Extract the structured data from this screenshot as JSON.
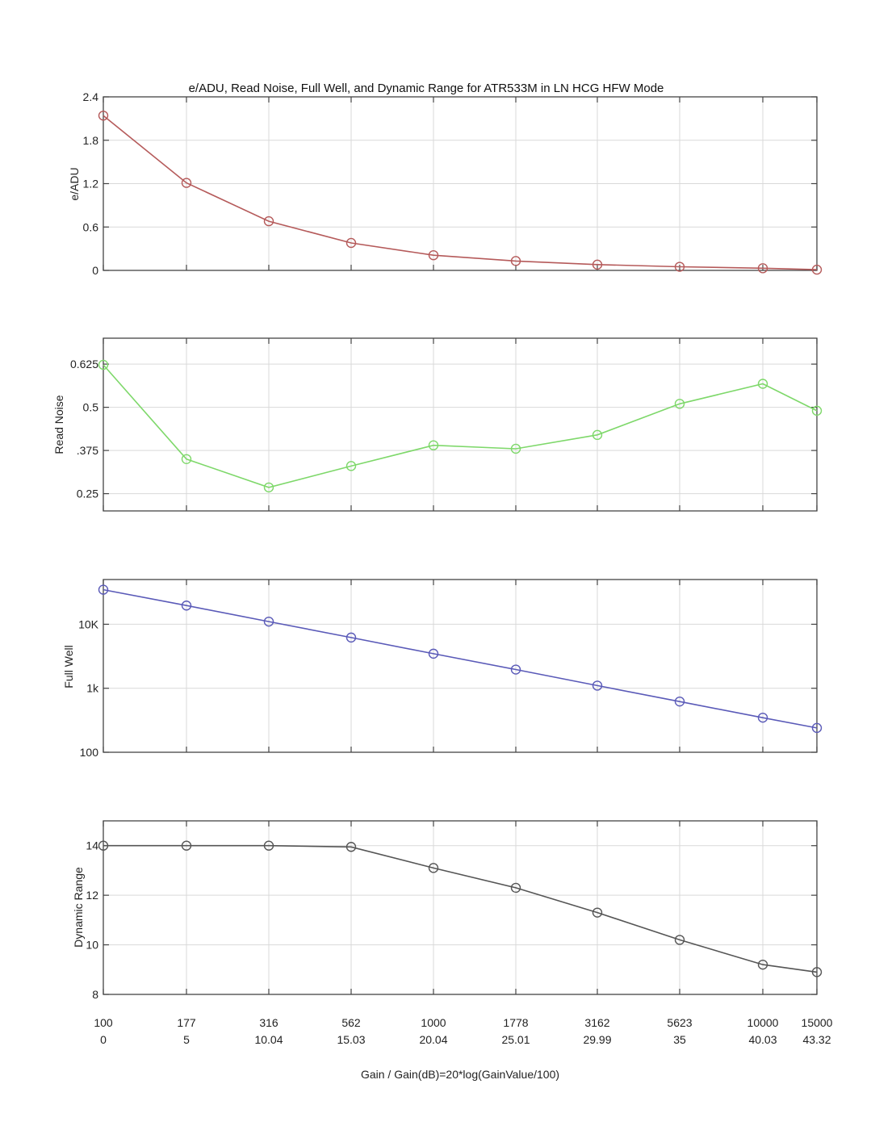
{
  "figure": {
    "title": "e/ADU, Read Noise, Full Well, and Dynamic Range for ATR533M in LN HCG HFW Mode",
    "xlabel": "Gain / Gain(dB)=20*log(GainValue/100)"
  },
  "chart_data": [
    {
      "type": "line",
      "ylabel": "e/ADU",
      "y_scale": "linear",
      "ylim": [
        0,
        2.4
      ],
      "yticks": [
        0,
        0.6,
        1.2,
        1.8,
        2.4
      ],
      "ytick_labels": [
        "0",
        "0.6",
        "1.2",
        "1.8",
        "2.4"
      ],
      "color": "#b55a5a",
      "marker": "circle",
      "grid": true,
      "x_categories": [
        "100",
        "177",
        "316",
        "562",
        "1000",
        "1778",
        "3162",
        "5623",
        "10000",
        "15000"
      ],
      "values": [
        2.14,
        1.21,
        0.68,
        0.38,
        0.21,
        0.13,
        0.08,
        0.05,
        0.03,
        0.01
      ]
    },
    {
      "type": "line",
      "ylabel": "Read Noise",
      "y_scale": "linear",
      "ylim": [
        0.2,
        0.7
      ],
      "yticks": [
        0.25,
        0.375,
        0.5,
        0.625
      ],
      "ytick_labels": [
        "0.25",
        ".375",
        "0.5",
        "0.625"
      ],
      "color": "#7ed86a",
      "marker": "circle",
      "grid": true,
      "x_categories": [
        "100",
        "177",
        "316",
        "562",
        "1000",
        "1778",
        "3162",
        "5623",
        "10000",
        "15000"
      ],
      "values": [
        0.623,
        0.35,
        0.268,
        0.33,
        0.39,
        0.38,
        0.42,
        0.51,
        0.568,
        0.49
      ]
    },
    {
      "type": "line",
      "ylabel": "Full Well",
      "y_scale": "log",
      "ylim": [
        100,
        50000
      ],
      "yticks": [
        100,
        1000,
        10000
      ],
      "ytick_labels": [
        "100",
        "1k",
        "10K"
      ],
      "color": "#5a5ab8",
      "marker": "circle",
      "grid": true,
      "x_categories": [
        "100",
        "177",
        "316",
        "562",
        "1000",
        "1778",
        "3162",
        "5623",
        "10000",
        "15000"
      ],
      "values": [
        34700,
        19600,
        11000,
        6200,
        3470,
        1960,
        1100,
        620,
        347,
        240
      ]
    },
    {
      "type": "line",
      "ylabel": "Dynamic Range",
      "y_scale": "linear",
      "ylim": [
        8,
        15
      ],
      "yticks": [
        8,
        10,
        12,
        14
      ],
      "ytick_labels": [
        "8",
        "10",
        "12",
        "14"
      ],
      "color": "#555555",
      "marker": "circle",
      "grid": true,
      "x_categories": [
        "100",
        "177",
        "316",
        "562",
        "1000",
        "1778",
        "3162",
        "5623",
        "10000",
        "15000"
      ],
      "x_categories_db": [
        "0",
        "5",
        "10.04",
        "15.03",
        "20.04",
        "25.01",
        "29.99",
        "35",
        "40.03",
        "43.32"
      ],
      "values": [
        14.0,
        14.0,
        14.0,
        13.95,
        13.1,
        12.3,
        11.3,
        10.2,
        9.2,
        8.9
      ]
    }
  ]
}
